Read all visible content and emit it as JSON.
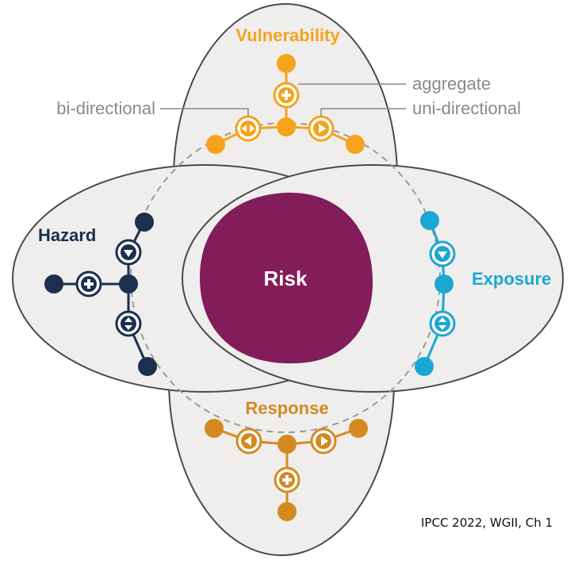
{
  "center": {
    "label": "Risk",
    "color": "#821c5b"
  },
  "petals": {
    "vulnerability": {
      "label": "Vulnerability",
      "color": "#f5a31b"
    },
    "hazard": {
      "label": "Hazard",
      "color": "#1b2f4f"
    },
    "exposure": {
      "label": "Exposure",
      "color": "#1ba7d3"
    },
    "response": {
      "label": "Response",
      "color": "#d48a21"
    }
  },
  "annotations": {
    "aggregate": "aggregate",
    "uni_directional": "uni-directional",
    "bi_directional": "bi-directional"
  },
  "icons": {
    "aggregate": "plus-icon",
    "uni_directional": "triangle-arrow-icon",
    "bi_directional": "double-arrow-icon"
  },
  "credit": "IPCC 2022, WGII, Ch 1",
  "colors": {
    "petal_fill": "#efeeed",
    "petal_stroke": "#4a4a4a",
    "connector": "#9a9a9a",
    "annotation": "#8a8a8a"
  }
}
